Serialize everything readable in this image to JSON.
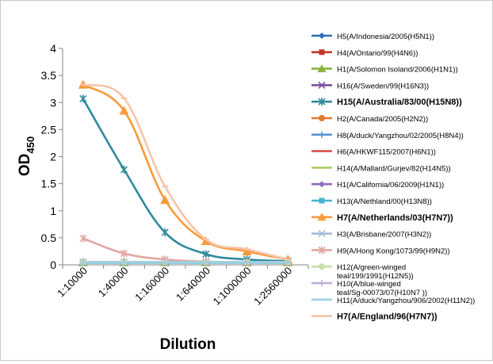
{
  "chart_data": {
    "type": "line",
    "xlabel": "Dilution",
    "ylabel": "OD",
    "ylabel_sub": "450",
    "categories": [
      "1:10000",
      "1:40000",
      "1:160000",
      "1:640000",
      "1:1000000",
      "1:2560000"
    ],
    "ylim": [
      0,
      4
    ],
    "yticks": [
      "0",
      "0.5",
      "1",
      "1.5",
      "2",
      "2.5",
      "3",
      "3.5",
      "4"
    ],
    "grid": false,
    "legend_position": "right",
    "series": [
      {
        "name": "H5(A/Indonesia/2005(H5N1))",
        "color": "#2e6db5",
        "marker": "diamond",
        "bold": false,
        "values": [
          0.05,
          0.05,
          0.05,
          0.05,
          0.05,
          0.05
        ]
      },
      {
        "name": "H4(A/Ontario/99(H4N6))",
        "color": "#c0392b",
        "marker": "square",
        "bold": false,
        "values": [
          0.05,
          0.05,
          0.05,
          0.05,
          0.05,
          0.05
        ]
      },
      {
        "name": "H1(A/Solomon Isoland/2006(H1N1))",
        "color": "#8cb23f",
        "marker": "triangle",
        "bold": false,
        "values": [
          0.05,
          0.05,
          0.05,
          0.05,
          0.05,
          0.05
        ]
      },
      {
        "name": "H16(A/Sweden/99(H16N3))",
        "color": "#7a4f9e",
        "marker": "x",
        "bold": false,
        "values": [
          0.05,
          0.05,
          0.05,
          0.05,
          0.05,
          0.05
        ]
      },
      {
        "name": "H15(A/Australia/83/00(H15N8))",
        "color": "#2f8a9e",
        "marker": "star",
        "bold": true,
        "values": [
          3.07,
          1.76,
          0.6,
          0.2,
          0.1,
          0.07
        ]
      },
      {
        "name": "H2(A/Canada/2005(H2N2))",
        "color": "#e07b2c",
        "marker": "circle",
        "bold": false,
        "values": [
          0.05,
          0.05,
          0.05,
          0.05,
          0.05,
          0.05
        ]
      },
      {
        "name": "H8(A/duck/Yangzhou/02/2005(H8N4))",
        "color": "#5b8ed4",
        "marker": "plus",
        "bold": false,
        "values": [
          0.05,
          0.05,
          0.05,
          0.05,
          0.05,
          0.05
        ]
      },
      {
        "name": "H6(A/HKWF115/2007(H6N1))",
        "color": "#d9534f",
        "marker": "dash",
        "bold": false,
        "values": [
          0.05,
          0.05,
          0.05,
          0.05,
          0.05,
          0.05
        ]
      },
      {
        "name": "H14(A/Mallard/Gurjev/82(H14N5))",
        "color": "#a9cf63",
        "marker": "dash",
        "bold": false,
        "values": [
          0.05,
          0.05,
          0.05,
          0.05,
          0.05,
          0.05
        ]
      },
      {
        "name": "H1(A/California/06/2009(H1N1))",
        "color": "#8e6bbf",
        "marker": "diamond",
        "bold": false,
        "values": [
          0.05,
          0.05,
          0.05,
          0.05,
          0.05,
          0.05
        ]
      },
      {
        "name": "H13(A/Nethland/00(H13N8))",
        "color": "#45b3cf",
        "marker": "square",
        "bold": false,
        "values": [
          0.04,
          0.04,
          0.04,
          0.04,
          0.04,
          0.04
        ]
      },
      {
        "name": "H7(A/Netherlands/03(H7N7))",
        "color": "#f79a3c",
        "marker": "triangle",
        "bold": true,
        "values": [
          3.33,
          2.85,
          1.2,
          0.44,
          0.25,
          0.1
        ]
      },
      {
        "name": "H3(A/Brisbane/2007(H3N2))",
        "color": "#a7b9dc",
        "marker": "x",
        "bold": false,
        "values": [
          0.05,
          0.05,
          0.05,
          0.05,
          0.05,
          0.05
        ]
      },
      {
        "name": "H9(A/Hong Kong/1073/99(H9N2))",
        "color": "#e3a5a3",
        "marker": "star",
        "bold": false,
        "values": [
          0.49,
          0.21,
          0.1,
          0.06,
          0.05,
          0.05
        ]
      },
      {
        "name": "H12(A/green-winged teal/199/1991(H12N5))",
        "color": "#c6dfa8",
        "marker": "circle",
        "bold": false,
        "values": [
          0.05,
          0.05,
          0.05,
          0.05,
          0.05,
          0.05
        ]
      },
      {
        "name": "H10(A/blue-winged teal/Sg-00073/07(H10N7 ))",
        "color": "#bdaed6",
        "marker": "plus",
        "bold": false,
        "values": [
          0.05,
          0.05,
          0.05,
          0.05,
          0.05,
          0.05
        ]
      },
      {
        "name": "H11(A/duck/Yangzhou/906/2002(H11N2))",
        "color": "#9fd0e0",
        "marker": "dash",
        "bold": false,
        "values": [
          0.05,
          0.05,
          0.05,
          0.05,
          0.05,
          0.05
        ]
      },
      {
        "name": "H7(A/England/96(H7N7))",
        "color": "#f7c4a8",
        "marker": "dash",
        "bold": true,
        "values": [
          3.33,
          3.08,
          1.45,
          0.47,
          0.29,
          0.1
        ]
      }
    ]
  }
}
